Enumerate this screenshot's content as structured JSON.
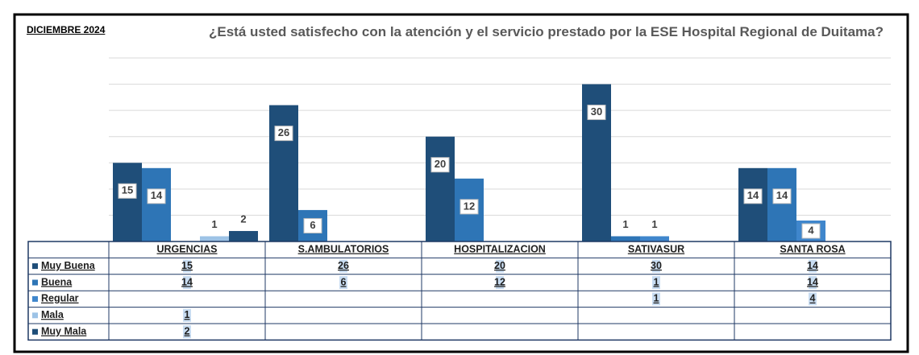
{
  "chart_data": {
    "type": "bar",
    "period": "DICIEMBRE 2024",
    "title": "¿Está usted satisfecho con la atención y el servicio prestado por la ESE Hospital Regional de Duitama?",
    "categories": [
      "URGENCIAS",
      "S.AMBULATORIOS",
      "HOSPITALIZACION",
      "SATIVASUR",
      "SANTA ROSA"
    ],
    "series": [
      {
        "name": "Muy Buena",
        "color": "#1f4e79",
        "values": [
          15,
          26,
          20,
          30,
          14
        ]
      },
      {
        "name": "Buena",
        "color": "#2e75b6",
        "values": [
          14,
          6,
          12,
          1,
          14
        ]
      },
      {
        "name": "Regular",
        "color": "#3f86cc",
        "values": [
          null,
          null,
          null,
          1,
          4
        ]
      },
      {
        "name": "Mala",
        "color": "#9dc3e6",
        "values": [
          1,
          null,
          null,
          null,
          null
        ]
      },
      {
        "name": "Muy Mala",
        "color": "#1f4e79",
        "values": [
          2,
          null,
          null,
          null,
          null
        ]
      }
    ],
    "ylim": [
      0,
      35
    ],
    "yticks": [
      0,
      5,
      10,
      15,
      20,
      25,
      30,
      35
    ],
    "grid": true
  }
}
